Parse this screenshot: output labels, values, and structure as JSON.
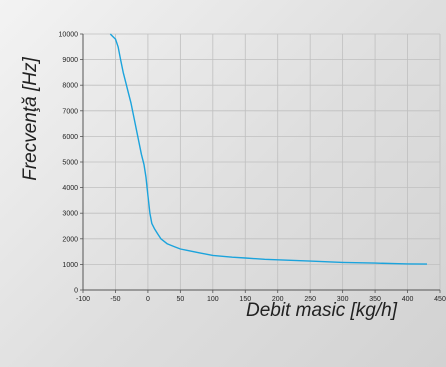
{
  "chart_data": {
    "type": "line",
    "xlabel": "Debit masic [kg/h]",
    "ylabel": "Frecvenţă [Hz]",
    "xlim": [
      -100,
      450
    ],
    "ylim": [
      0,
      10000
    ],
    "x_ticks": [
      -100,
      -50,
      0,
      50,
      100,
      150,
      200,
      250,
      300,
      350,
      400,
      450
    ],
    "y_ticks": [
      0,
      1000,
      2000,
      3000,
      4000,
      5000,
      6000,
      7000,
      8000,
      9000,
      10000
    ],
    "grid": true,
    "colors": {
      "line": "#1ba3dc",
      "grid": "#bfbfbf",
      "axis": "#555555"
    },
    "series": [
      {
        "x": [
          -58,
          -54,
          -50,
          -46,
          -42,
          -38,
          -34,
          -30,
          -26,
          -22,
          -18,
          -14,
          -10,
          -6,
          -3,
          0,
          3,
          6,
          10,
          15,
          20,
          30,
          40,
          50,
          60,
          80,
          100,
          130,
          150,
          180,
          200,
          250,
          300,
          350,
          400,
          430
        ],
        "y": [
          10000,
          9900,
          9800,
          9500,
          9000,
          8500,
          8100,
          7700,
          7300,
          6800,
          6300,
          5800,
          5300,
          4900,
          4400,
          3700,
          3000,
          2600,
          2400,
          2200,
          2000,
          1800,
          1700,
          1600,
          1550,
          1450,
          1350,
          1280,
          1250,
          1200,
          1180,
          1130,
          1080,
          1050,
          1020,
          1010
        ]
      }
    ]
  }
}
